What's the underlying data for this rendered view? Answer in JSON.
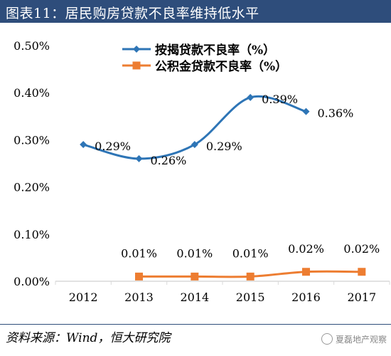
{
  "header": {
    "title": "图表11：居民购房贷款不良率维持低水平"
  },
  "footer": {
    "source": "资料来源：Wind，恒大研究院",
    "watermark": "夏磊地产观察"
  },
  "chart_data": {
    "type": "line",
    "title": "",
    "x": [
      "2012",
      "2013",
      "2014",
      "2015",
      "2016",
      "2017"
    ],
    "ylim": [
      0,
      0.5
    ],
    "y_ticks": [
      0.0,
      0.1,
      0.2,
      0.3,
      0.4,
      0.5
    ],
    "y_tick_labels": [
      "0.00%",
      "0.10%",
      "0.20%",
      "0.30%",
      "0.40%",
      "0.50%"
    ],
    "grid": false,
    "legend_position": "top-center",
    "series": [
      {
        "name": "按揭贷款不良率（%）",
        "color": "#2e75b6",
        "marker": "diamond",
        "smooth": true,
        "values": [
          0.29,
          0.26,
          0.29,
          0.39,
          0.36,
          null
        ],
        "labels": [
          "0.29%",
          "0.26%",
          "0.29%",
          "0.39%",
          "0.36%",
          null
        ]
      },
      {
        "name": "公积金贷款不良率（%）",
        "color": "#ed7d31",
        "marker": "square",
        "smooth": true,
        "values": [
          null,
          0.01,
          0.01,
          0.01,
          0.02,
          0.02
        ],
        "labels": [
          null,
          "0.01%",
          "0.01%",
          "0.01%",
          "0.02%",
          "0.02%"
        ]
      }
    ]
  }
}
